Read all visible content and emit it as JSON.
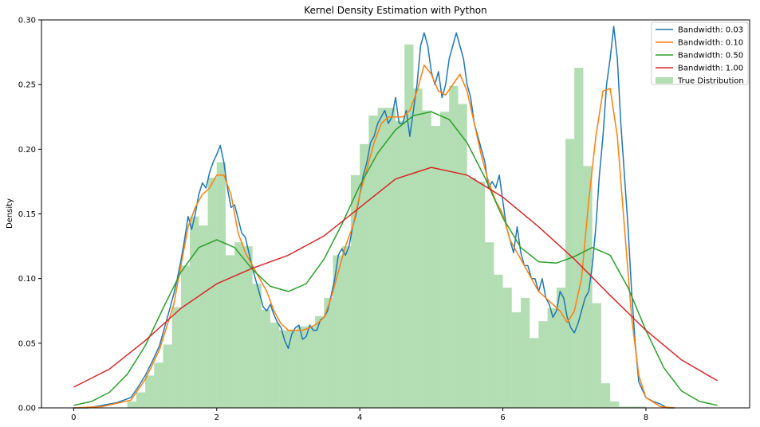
{
  "chart_data": {
    "type": "line",
    "title": "Kernel Density Estimation with Python",
    "xlabel": "",
    "ylabel": "Density",
    "xlim": [
      -0.45,
      9.45
    ],
    "ylim": [
      0,
      0.3
    ],
    "xticks": [
      0,
      2,
      4,
      6,
      8
    ],
    "yticks": [
      0.0,
      0.05,
      0.1,
      0.15,
      0.2,
      0.25,
      0.3
    ],
    "yticks_labels": [
      "0.00",
      "0.05",
      "0.10",
      "0.15",
      "0.20",
      "0.25",
      "0.30"
    ],
    "legend": {
      "position": "top-right"
    },
    "histogram": {
      "name": "True Distribution",
      "color": "#2ca02c",
      "opacity": 0.36,
      "bin_width": 0.125,
      "bins_left": [
        0.75,
        0.875,
        1.0,
        1.125,
        1.25,
        1.375,
        1.5,
        1.625,
        1.75,
        1.875,
        2.0,
        2.125,
        2.25,
        2.375,
        2.5,
        2.625,
        2.75,
        2.875,
        3.0,
        3.125,
        3.25,
        3.375,
        3.5,
        3.625,
        3.75,
        3.875,
        4.0,
        4.125,
        4.25,
        4.375,
        4.5,
        4.625,
        4.75,
        4.875,
        5.0,
        5.125,
        5.25,
        5.375,
        5.5,
        5.625,
        5.75,
        5.875,
        6.0,
        6.125,
        6.25,
        6.375,
        6.5,
        6.625,
        6.75,
        6.875,
        7.0,
        7.125,
        7.25,
        7.375,
        7.5,
        7.625,
        7.75,
        7.875,
        8.0
      ],
      "heights": [
        0.005,
        0.012,
        0.025,
        0.035,
        0.049,
        0.078,
        0.11,
        0.148,
        0.141,
        0.178,
        0.19,
        0.118,
        0.128,
        0.125,
        0.096,
        0.076,
        0.066,
        0.06,
        0.06,
        0.063,
        0.063,
        0.071,
        0.085,
        0.118,
        0.125,
        0.18,
        0.204,
        0.226,
        0.232,
        0.232,
        0.222,
        0.281,
        0.247,
        0.23,
        0.218,
        0.229,
        0.249,
        0.235,
        0.178,
        0.175,
        0.128,
        0.103,
        0.093,
        0.074,
        0.085,
        0.054,
        0.067,
        0.077,
        0.093,
        0.208,
        0.263,
        0.187,
        0.081,
        0.019,
        0.005,
        0.001,
        0.001,
        0.001,
        0.0
      ]
    },
    "series": [
      {
        "name": "Bandwidth: 0.03",
        "color": "#1f77b4",
        "x": [
          0,
          0.2,
          0.4,
          0.6,
          0.7,
          0.8,
          0.9,
          1.0,
          1.1,
          1.2,
          1.3,
          1.35,
          1.4,
          1.45,
          1.5,
          1.55,
          1.6,
          1.65,
          1.7,
          1.75,
          1.8,
          1.85,
          1.9,
          1.95,
          2.0,
          2.05,
          2.1,
          2.15,
          2.2,
          2.25,
          2.3,
          2.35,
          2.4,
          2.45,
          2.5,
          2.55,
          2.6,
          2.65,
          2.7,
          2.75,
          2.8,
          2.85,
          2.9,
          2.95,
          3.0,
          3.05,
          3.1,
          3.15,
          3.2,
          3.25,
          3.3,
          3.35,
          3.4,
          3.45,
          3.5,
          3.55,
          3.6,
          3.65,
          3.7,
          3.75,
          3.8,
          3.85,
          3.9,
          3.95,
          4.0,
          4.05,
          4.1,
          4.15,
          4.2,
          4.25,
          4.3,
          4.35,
          4.4,
          4.45,
          4.5,
          4.55,
          4.6,
          4.65,
          4.7,
          4.75,
          4.8,
          4.85,
          4.9,
          4.95,
          5.0,
          5.05,
          5.1,
          5.15,
          5.2,
          5.25,
          5.3,
          5.35,
          5.4,
          5.45,
          5.5,
          5.55,
          5.6,
          5.65,
          5.7,
          5.75,
          5.8,
          5.85,
          5.9,
          5.95,
          6.0,
          6.05,
          6.1,
          6.15,
          6.2,
          6.25,
          6.3,
          6.35,
          6.4,
          6.45,
          6.5,
          6.55,
          6.6,
          6.65,
          6.7,
          6.75,
          6.8,
          6.85,
          6.9,
          6.95,
          7.0,
          7.05,
          7.1,
          7.15,
          7.2,
          7.25,
          7.3,
          7.35,
          7.4,
          7.45,
          7.5,
          7.55,
          7.6,
          7.65,
          7.7,
          7.75,
          7.8,
          7.85,
          7.9,
          8.0,
          8.1,
          8.2,
          8.3,
          8.4
        ],
        "y": [
          0.0,
          0.0,
          0.002,
          0.004,
          0.006,
          0.008,
          0.016,
          0.025,
          0.036,
          0.048,
          0.068,
          0.078,
          0.088,
          0.1,
          0.114,
          0.13,
          0.148,
          0.138,
          0.15,
          0.165,
          0.174,
          0.17,
          0.182,
          0.19,
          0.196,
          0.203,
          0.19,
          0.17,
          0.155,
          0.157,
          0.146,
          0.135,
          0.132,
          0.12,
          0.108,
          0.098,
          0.088,
          0.078,
          0.075,
          0.08,
          0.072,
          0.066,
          0.062,
          0.052,
          0.046,
          0.057,
          0.062,
          0.064,
          0.053,
          0.055,
          0.064,
          0.06,
          0.06,
          0.068,
          0.07,
          0.075,
          0.087,
          0.1,
          0.118,
          0.123,
          0.118,
          0.125,
          0.14,
          0.15,
          0.165,
          0.18,
          0.19,
          0.205,
          0.21,
          0.22,
          0.225,
          0.23,
          0.22,
          0.225,
          0.24,
          0.22,
          0.22,
          0.23,
          0.21,
          0.23,
          0.25,
          0.28,
          0.29,
          0.28,
          0.26,
          0.25,
          0.26,
          0.24,
          0.25,
          0.27,
          0.28,
          0.29,
          0.28,
          0.27,
          0.25,
          0.24,
          0.22,
          0.21,
          0.2,
          0.19,
          0.17,
          0.175,
          0.17,
          0.18,
          0.16,
          0.14,
          0.13,
          0.12,
          0.14,
          0.12,
          0.11,
          0.11,
          0.1,
          0.1,
          0.09,
          0.1,
          0.085,
          0.08,
          0.07,
          0.075,
          0.09,
          0.085,
          0.07,
          0.062,
          0.058,
          0.065,
          0.075,
          0.085,
          0.09,
          0.11,
          0.14,
          0.18,
          0.21,
          0.25,
          0.27,
          0.295,
          0.27,
          0.22,
          0.18,
          0.14,
          0.09,
          0.05,
          0.02,
          0.008,
          0.005,
          0.003,
          0.0,
          0.0
        ]
      },
      {
        "name": "Bandwidth: 0.10",
        "color": "#ff7f0e",
        "x": [
          0,
          0.4,
          0.8,
          1.0,
          1.2,
          1.4,
          1.5,
          1.6,
          1.7,
          1.8,
          1.9,
          2.0,
          2.1,
          2.2,
          2.3,
          2.4,
          2.5,
          2.6,
          2.7,
          2.8,
          2.9,
          3.0,
          3.1,
          3.2,
          3.3,
          3.4,
          3.5,
          3.6,
          3.7,
          3.8,
          3.9,
          4.0,
          4.1,
          4.2,
          4.3,
          4.4,
          4.5,
          4.6,
          4.7,
          4.8,
          4.9,
          5.0,
          5.1,
          5.2,
          5.3,
          5.4,
          5.5,
          5.6,
          5.7,
          5.8,
          5.9,
          6.0,
          6.1,
          6.2,
          6.3,
          6.4,
          6.5,
          6.6,
          6.7,
          6.8,
          6.9,
          7.0,
          7.1,
          7.2,
          7.3,
          7.4,
          7.5,
          7.6,
          7.7,
          7.8,
          7.9,
          8.0,
          8.2,
          8.4
        ],
        "y": [
          0.0,
          0.001,
          0.006,
          0.022,
          0.045,
          0.08,
          0.11,
          0.14,
          0.155,
          0.165,
          0.17,
          0.18,
          0.18,
          0.165,
          0.135,
          0.12,
          0.11,
          0.1,
          0.09,
          0.075,
          0.065,
          0.06,
          0.06,
          0.06,
          0.062,
          0.065,
          0.07,
          0.085,
          0.105,
          0.125,
          0.14,
          0.165,
          0.185,
          0.205,
          0.22,
          0.225,
          0.225,
          0.225,
          0.23,
          0.245,
          0.265,
          0.258,
          0.245,
          0.242,
          0.25,
          0.258,
          0.245,
          0.22,
          0.195,
          0.175,
          0.16,
          0.15,
          0.13,
          0.12,
          0.11,
          0.1,
          0.09,
          0.085,
          0.08,
          0.075,
          0.066,
          0.075,
          0.1,
          0.16,
          0.21,
          0.245,
          0.247,
          0.21,
          0.14,
          0.07,
          0.025,
          0.008,
          0.001,
          0.0
        ]
      },
      {
        "name": "Bandwidth: 0.50",
        "color": "#2ca02c",
        "x": [
          0,
          0.25,
          0.5,
          0.75,
          1.0,
          1.25,
          1.5,
          1.75,
          2.0,
          2.25,
          2.5,
          2.75,
          3.0,
          3.25,
          3.5,
          3.75,
          4.0,
          4.25,
          4.5,
          4.75,
          5.0,
          5.25,
          5.5,
          5.75,
          6.0,
          6.25,
          6.5,
          6.75,
          7.0,
          7.25,
          7.5,
          7.75,
          8.0,
          8.25,
          8.5,
          8.75,
          9.0
        ],
        "y": [
          0.002,
          0.005,
          0.012,
          0.026,
          0.048,
          0.077,
          0.105,
          0.124,
          0.13,
          0.124,
          0.107,
          0.094,
          0.09,
          0.096,
          0.115,
          0.142,
          0.172,
          0.197,
          0.215,
          0.226,
          0.229,
          0.223,
          0.205,
          0.178,
          0.147,
          0.124,
          0.113,
          0.112,
          0.117,
          0.124,
          0.118,
          0.093,
          0.06,
          0.031,
          0.013,
          0.005,
          0.002
        ]
      },
      {
        "name": "Bandwidth: 1.00",
        "color": "#d62728",
        "x": [
          0,
          0.5,
          1.0,
          1.5,
          2.0,
          2.5,
          3.0,
          3.5,
          4.0,
          4.5,
          5.0,
          5.5,
          6.0,
          6.5,
          7.0,
          7.5,
          8.0,
          8.5,
          9.0
        ],
        "y": [
          0.016,
          0.03,
          0.052,
          0.077,
          0.096,
          0.108,
          0.118,
          0.133,
          0.155,
          0.177,
          0.186,
          0.18,
          0.163,
          0.14,
          0.115,
          0.087,
          0.06,
          0.037,
          0.021
        ]
      }
    ]
  }
}
